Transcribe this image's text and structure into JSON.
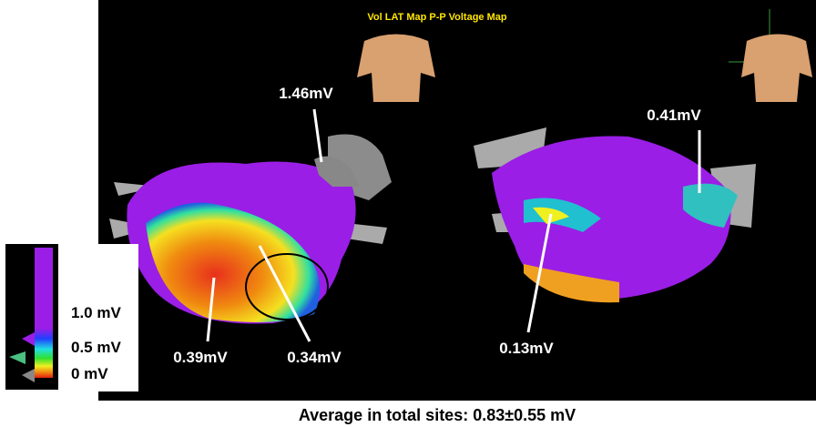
{
  "header": {
    "title": "Vol LAT Map P-P Voltage Map"
  },
  "annotations": [
    "1.46mV",
    "0.41mV",
    "0.39mV",
    "0.34mV",
    "0.13mV"
  ],
  "legend": {
    "labels": [
      "1.0 mV",
      "0.5 mV",
      "0 mV"
    ]
  },
  "caption": "Average in total sites: 0.83±0.55 mV"
}
